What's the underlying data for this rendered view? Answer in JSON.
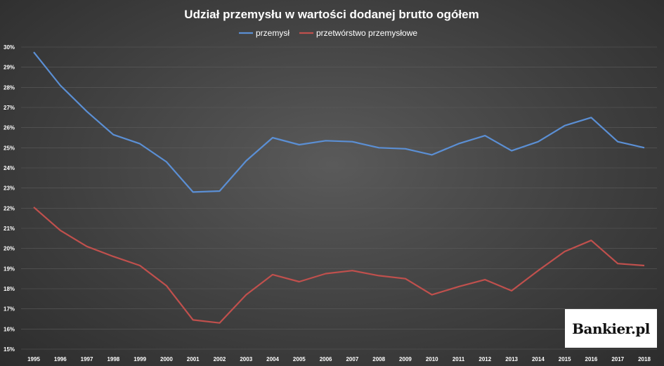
{
  "chart_data": {
    "type": "line",
    "title": "Udział przemysłu w wartości dodanej brutto ogółem",
    "x": [
      "1995",
      "1996",
      "1997",
      "1998",
      "1999",
      "2000",
      "2001",
      "2002",
      "2003",
      "2004",
      "2005",
      "2006",
      "2007",
      "2008",
      "2009",
      "2010",
      "2011",
      "2012",
      "2013",
      "2014",
      "2015",
      "2016",
      "2017",
      "2018"
    ],
    "series": [
      {
        "name": "przemysł",
        "color": "#5b8fd4",
        "values": [
          29.75,
          28.1,
          26.8,
          25.65,
          25.2,
          24.3,
          22.8,
          22.85,
          24.35,
          25.5,
          25.15,
          25.35,
          25.3,
          25.0,
          24.95,
          24.65,
          25.2,
          25.6,
          24.85,
          25.3,
          26.1,
          26.5,
          25.3,
          25.0
        ]
      },
      {
        "name": "przetwórstwo przemysłowe",
        "color": "#c0504d",
        "values": [
          22.05,
          20.9,
          20.1,
          19.6,
          19.15,
          18.15,
          16.45,
          16.3,
          17.7,
          18.7,
          18.35,
          18.75,
          18.9,
          18.65,
          18.5,
          17.7,
          18.1,
          18.45,
          17.9,
          18.9,
          19.85,
          20.4,
          19.25,
          19.15
        ]
      }
    ],
    "ylim": [
      15,
      30
    ],
    "yticks": [
      "15%",
      "16%",
      "17%",
      "18%",
      "19%",
      "20%",
      "21%",
      "22%",
      "23%",
      "24%",
      "25%",
      "26%",
      "27%",
      "28%",
      "29%",
      "30%"
    ],
    "grid": true,
    "legend": "top-center"
  },
  "logo": {
    "text": "Bankier.pl"
  }
}
